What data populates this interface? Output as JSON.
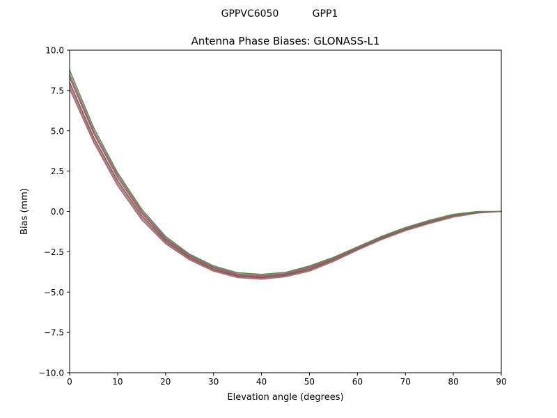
{
  "figure": {
    "suptitle_left": "GPPVC6050",
    "suptitle_right": "GPP1"
  },
  "chart_data": {
    "type": "line",
    "title": "Antenna Phase Biases: GLONASS-L1",
    "xlabel": "Elevation angle (degrees)",
    "ylabel": "Bias (mm)",
    "xlim": [
      0,
      90
    ],
    "ylim": [
      -10,
      10
    ],
    "xticks": [
      0,
      10,
      20,
      30,
      40,
      50,
      60,
      70,
      80,
      90
    ],
    "xtick_labels": [
      "0",
      "10",
      "20",
      "30",
      "40",
      "50",
      "60",
      "70",
      "80",
      "90"
    ],
    "yticks": [
      10,
      7.5,
      5,
      2.5,
      0,
      -2.5,
      -5,
      -7.5,
      -10
    ],
    "ytick_labels": [
      "10.0",
      "7.5",
      "5.0",
      "2.5",
      "0.0",
      "−2.5",
      "−5.0",
      "−7.5",
      "−10.0"
    ],
    "grid": false,
    "legend": "none",
    "x": [
      0,
      5,
      10,
      15,
      20,
      25,
      30,
      35,
      40,
      45,
      50,
      55,
      60,
      65,
      70,
      75,
      80,
      85,
      90
    ],
    "series": [
      {
        "color": "#b85c7a",
        "values": [
          7.6,
          4.3,
          1.6,
          -0.5,
          -2.0,
          -3.0,
          -3.7,
          -4.1,
          -4.2,
          -4.05,
          -3.7,
          -3.1,
          -2.4,
          -1.75,
          -1.2,
          -0.75,
          -0.35,
          -0.1,
          0.0
        ]
      },
      {
        "color": "#8a8a8a",
        "values": [
          7.8,
          4.45,
          1.75,
          -0.38,
          -1.92,
          -2.95,
          -3.65,
          -4.05,
          -4.15,
          -4.0,
          -3.65,
          -3.05,
          -2.37,
          -1.72,
          -1.18,
          -0.72,
          -0.32,
          -0.08,
          0.0
        ]
      },
      {
        "color": "#7a5c3a",
        "values": [
          8.0,
          4.6,
          1.9,
          -0.25,
          -1.83,
          -2.88,
          -3.6,
          -4.0,
          -4.1,
          -3.95,
          -3.6,
          -3.0,
          -2.33,
          -1.68,
          -1.12,
          -0.68,
          -0.28,
          -0.06,
          0.0
        ]
      },
      {
        "color": "#c0504d",
        "values": [
          8.3,
          4.85,
          2.1,
          -0.1,
          -1.73,
          -2.8,
          -3.52,
          -3.95,
          -4.05,
          -3.9,
          -3.52,
          -2.95,
          -2.28,
          -1.63,
          -1.07,
          -0.63,
          -0.25,
          -0.04,
          0.0
        ]
      },
      {
        "color": "#8064a2",
        "values": [
          8.5,
          5.0,
          2.25,
          0.02,
          -1.65,
          -2.73,
          -3.45,
          -3.88,
          -3.98,
          -3.85,
          -3.45,
          -2.9,
          -2.24,
          -1.6,
          -1.04,
          -0.6,
          -0.22,
          -0.03,
          0.0
        ]
      },
      {
        "color": "#5a8f3a",
        "values": [
          8.75,
          5.2,
          2.4,
          0.15,
          -1.55,
          -2.65,
          -3.38,
          -3.8,
          -3.9,
          -3.78,
          -3.38,
          -2.85,
          -2.2,
          -1.55,
          -1.0,
          -0.55,
          -0.18,
          -0.01,
          0.0
        ]
      }
    ]
  }
}
